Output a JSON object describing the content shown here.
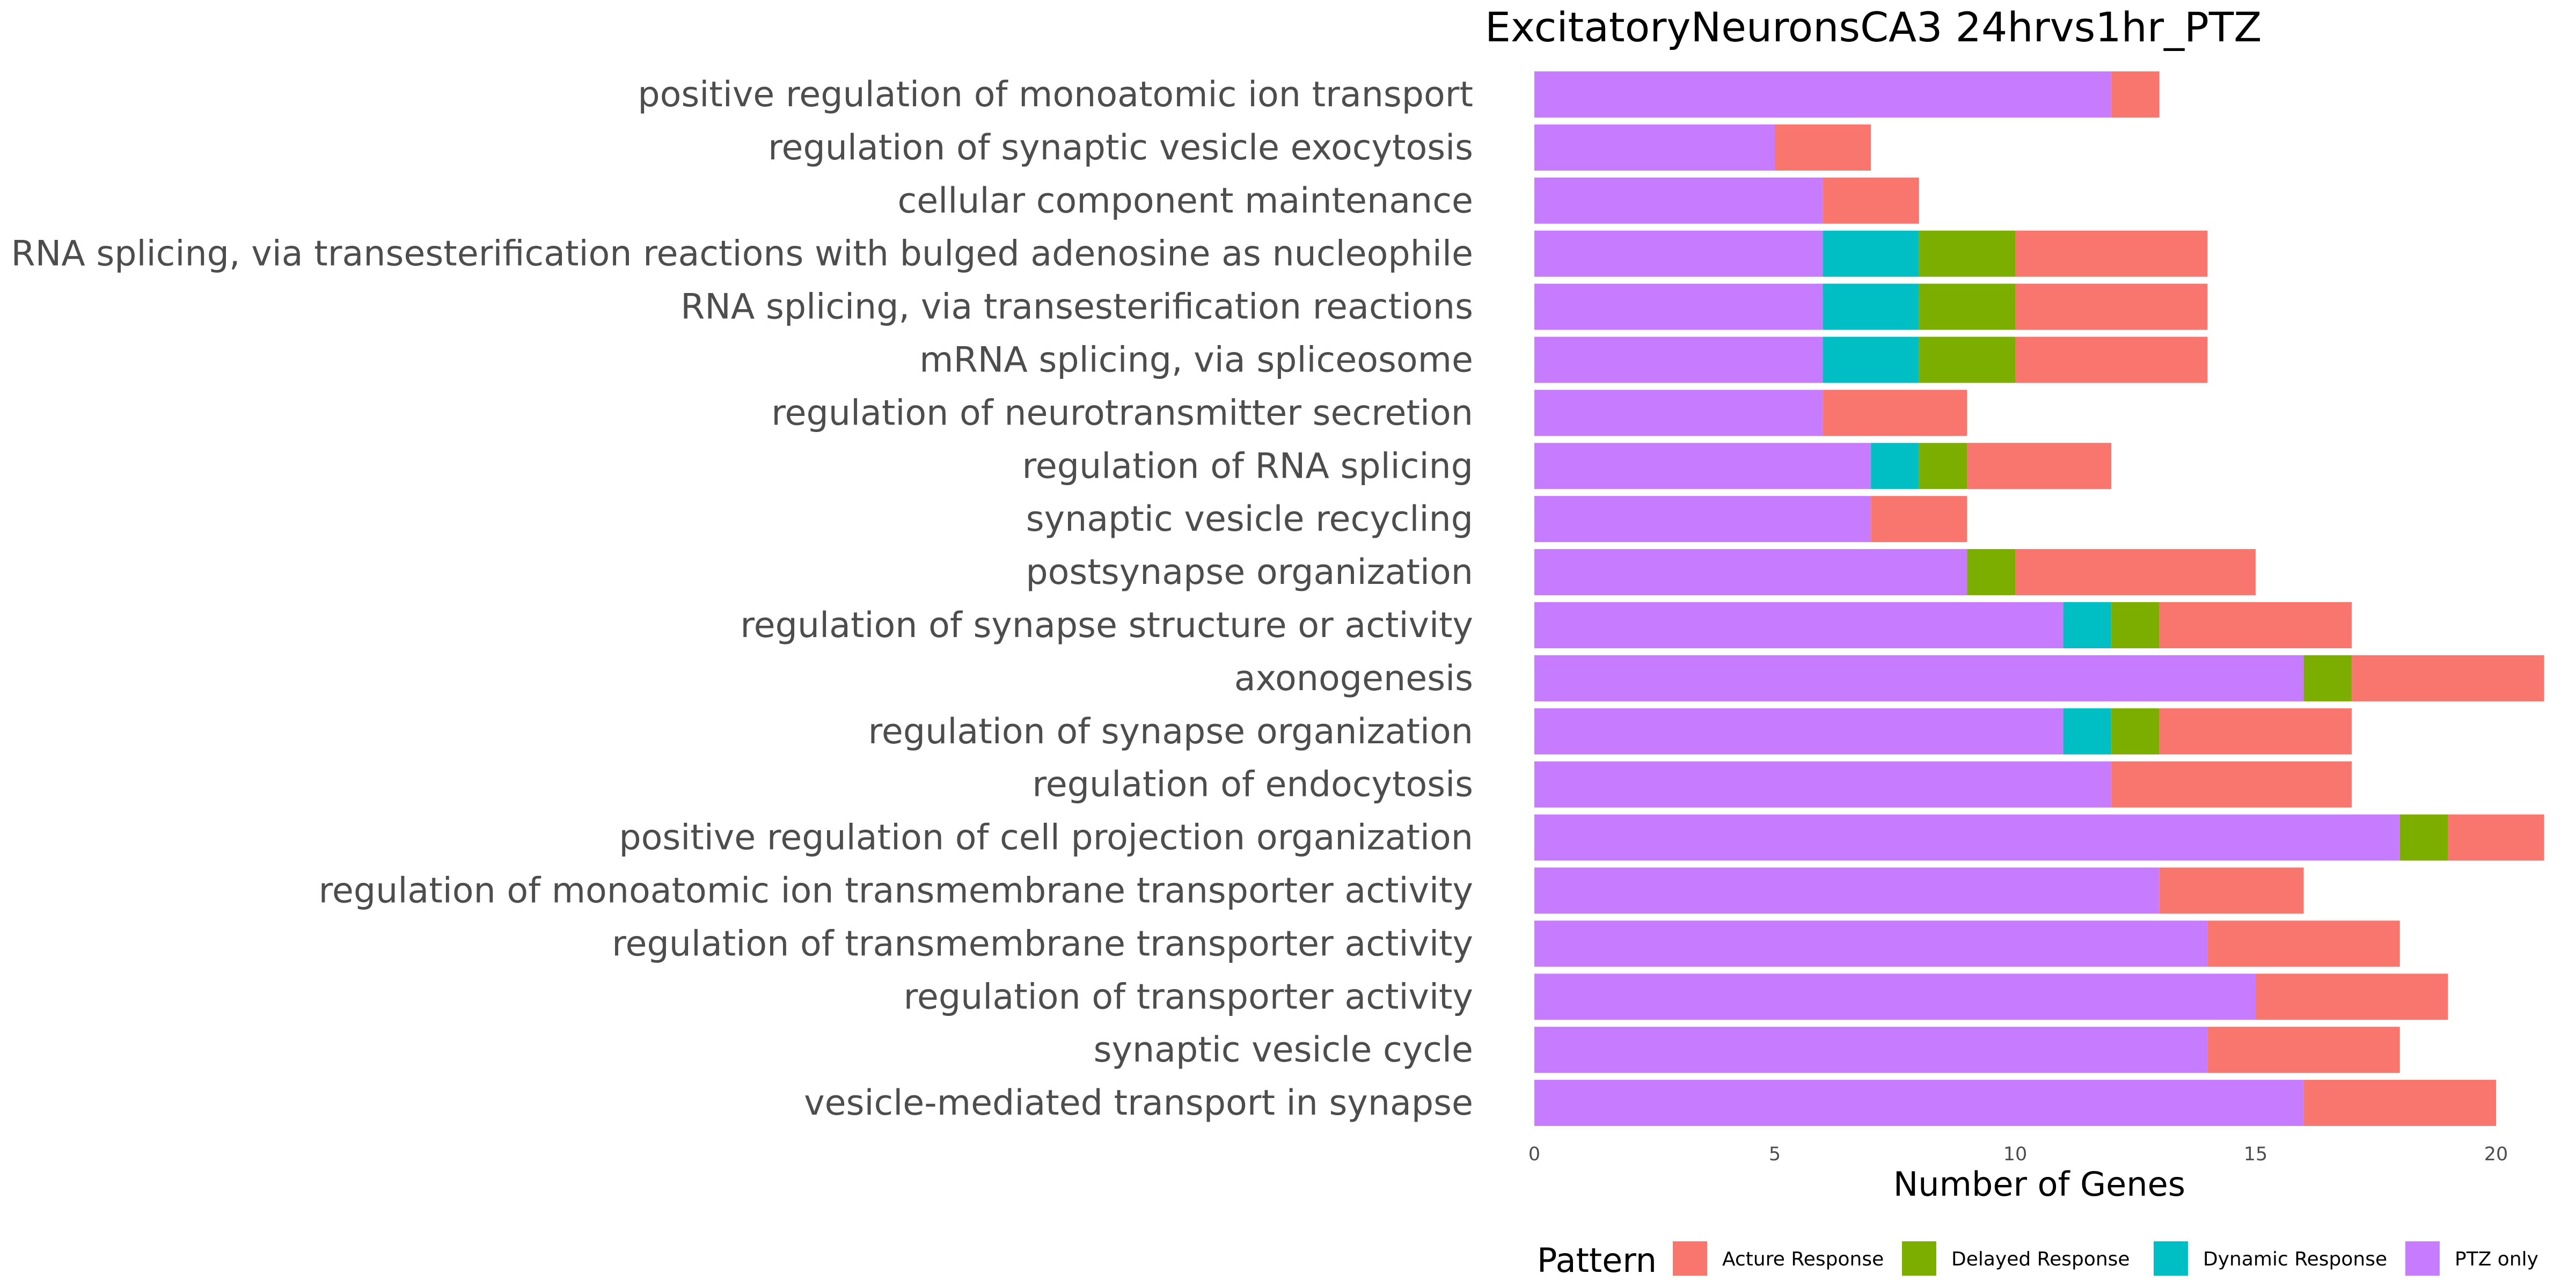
{
  "chart_data": {
    "type": "bar",
    "orientation": "horizontal",
    "stacked": true,
    "title": "ExcitatoryNeuronsCA3 24hrvs1hr_PTZ",
    "xlabel": "Number of Genes",
    "ylabel": "",
    "xlim": [
      0,
      21
    ],
    "xticks": [
      0,
      5,
      10,
      15,
      20
    ],
    "grid": false,
    "legend": {
      "title": "Pattern",
      "placement": "bottom"
    },
    "categories": [
      "positive regulation of monoatomic ion transport",
      "regulation of synaptic vesicle exocytosis",
      "cellular component maintenance",
      "RNA splicing, via transesterification reactions with bulged adenosine as nucleophile",
      "RNA splicing, via transesterification reactions",
      "mRNA splicing, via spliceosome",
      "regulation of neurotransmitter secretion",
      "regulation of RNA splicing",
      "synaptic vesicle recycling",
      "postsynapse organization",
      "regulation of synapse structure or activity",
      "axonogenesis",
      "regulation of synapse organization",
      "regulation of endocytosis",
      "positive regulation of cell projection organization",
      "regulation of monoatomic ion transmembrane transporter activity",
      "regulation of transmembrane transporter activity",
      "regulation of transporter activity",
      "synaptic vesicle cycle",
      "vesicle-mediated transport in synapse"
    ],
    "series": [
      {
        "name": "PTZ only",
        "color": "#C77CFF",
        "values": [
          12,
          5,
          6,
          6,
          6,
          6,
          6,
          7,
          7,
          9,
          11,
          16,
          11,
          12,
          18,
          13,
          14,
          15,
          14,
          16
        ]
      },
      {
        "name": "Dynamic Response",
        "color": "#00BFC4",
        "values": [
          0,
          0,
          0,
          2,
          2,
          2,
          0,
          1,
          0,
          0,
          1,
          0,
          1,
          0,
          0,
          0,
          0,
          0,
          0,
          0
        ]
      },
      {
        "name": "Delayed Response",
        "color": "#7CAE00",
        "values": [
          0,
          0,
          0,
          2,
          2,
          2,
          0,
          1,
          0,
          1,
          1,
          1,
          1,
          0,
          1,
          0,
          0,
          0,
          0,
          0
        ]
      },
      {
        "name": "Acture Response",
        "color": "#F8766D",
        "values": [
          1,
          2,
          2,
          4,
          4,
          4,
          3,
          3,
          2,
          5,
          4,
          4,
          4,
          5,
          2,
          3,
          4,
          4,
          4,
          4
        ]
      }
    ],
    "legend_order": [
      "Acture Response",
      "Delayed Response",
      "Dynamic Response",
      "PTZ only"
    ]
  }
}
